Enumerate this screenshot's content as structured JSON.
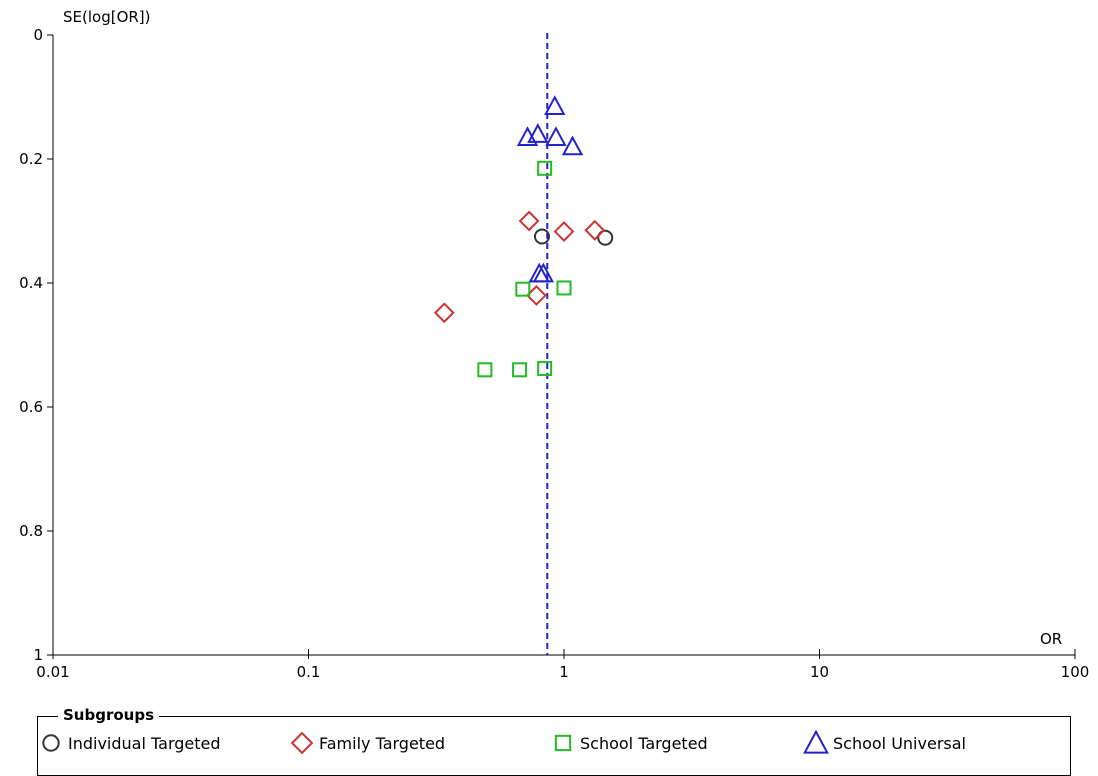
{
  "chart_data": {
    "type": "scatter",
    "title": "",
    "xlabel": "OR",
    "ylabel": "SE(log[OR])",
    "x_scale": "log",
    "xlim": [
      0.01,
      100
    ],
    "ylim": [
      0,
      1
    ],
    "y_inverted": true,
    "x_ticks": [
      "0.01",
      "0.1",
      "1",
      "10",
      "100"
    ],
    "y_ticks": [
      "0",
      "0.2",
      "0.4",
      "0.6",
      "0.8",
      "1"
    ],
    "reference_line_x": 0.86,
    "grid": false,
    "legend_title": "Subgroups",
    "legend_placement": "bottom",
    "series": [
      {
        "name": "Individual Targeted",
        "marker": "circle",
        "color": "#333333",
        "points": [
          {
            "x": 0.82,
            "y": 0.325
          },
          {
            "x": 1.45,
            "y": 0.327
          }
        ]
      },
      {
        "name": "Family Targeted",
        "marker": "diamond",
        "color": "#cc3333",
        "points": [
          {
            "x": 0.73,
            "y": 0.3
          },
          {
            "x": 1.0,
            "y": 0.317
          },
          {
            "x": 1.32,
            "y": 0.315
          },
          {
            "x": 0.78,
            "y": 0.42
          },
          {
            "x": 0.34,
            "y": 0.448
          }
        ]
      },
      {
        "name": "School Targeted",
        "marker": "square",
        "color": "#22bb22",
        "points": [
          {
            "x": 0.84,
            "y": 0.215
          },
          {
            "x": 0.69,
            "y": 0.41
          },
          {
            "x": 1.0,
            "y": 0.408
          },
          {
            "x": 0.49,
            "y": 0.54
          },
          {
            "x": 0.67,
            "y": 0.54
          },
          {
            "x": 0.84,
            "y": 0.538
          }
        ]
      },
      {
        "name": "School Universal",
        "marker": "triangle",
        "color": "#2222cc",
        "points": [
          {
            "x": 0.92,
            "y": 0.115
          },
          {
            "x": 0.72,
            "y": 0.165
          },
          {
            "x": 0.79,
            "y": 0.16
          },
          {
            "x": 0.93,
            "y": 0.165
          },
          {
            "x": 1.08,
            "y": 0.18
          },
          {
            "x": 0.8,
            "y": 0.385
          },
          {
            "x": 0.83,
            "y": 0.385
          }
        ]
      }
    ]
  }
}
